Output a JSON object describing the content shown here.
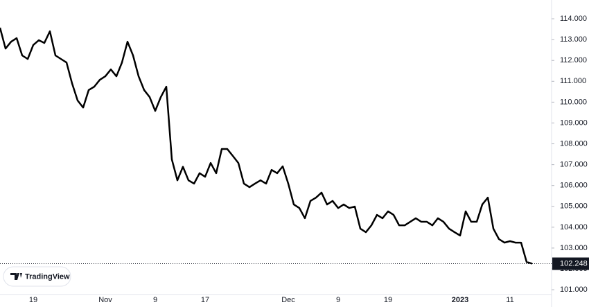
{
  "chart_data": {
    "type": "line",
    "color": "#000000",
    "grid": false,
    "watermark": "TradingView",
    "categories": [
      null,
      null,
      null,
      null,
      null,
      null,
      "19",
      null,
      null,
      null,
      null,
      null,
      null,
      null,
      null,
      null,
      null,
      null,
      null,
      "Nov",
      null,
      null,
      null,
      null,
      null,
      null,
      null,
      null,
      "9",
      null,
      null,
      null,
      null,
      null,
      null,
      null,
      null,
      "17",
      null,
      null,
      null,
      null,
      null,
      null,
      null,
      null,
      null,
      null,
      null,
      null,
      null,
      null,
      "Dec",
      null,
      null,
      null,
      null,
      null,
      null,
      null,
      null,
      "9",
      null,
      null,
      null,
      null,
      null,
      null,
      null,
      null,
      "19",
      null,
      null,
      null,
      null,
      null,
      null,
      null,
      null,
      null,
      null,
      null,
      null,
      "2023",
      null,
      null,
      null,
      null,
      null,
      null,
      null,
      null,
      "11",
      null,
      null,
      null,
      null
    ],
    "values": [
      113.57,
      112.57,
      112.9,
      113.07,
      112.24,
      112.07,
      112.74,
      112.97,
      112.84,
      113.4,
      112.24,
      112.07,
      111.9,
      110.9,
      110.08,
      109.74,
      110.58,
      110.74,
      111.07,
      111.24,
      111.57,
      111.24,
      111.9,
      112.9,
      112.24,
      111.24,
      110.58,
      110.24,
      109.58,
      110.24,
      110.74,
      107.25,
      106.25,
      106.9,
      106.25,
      106.09,
      106.59,
      106.42,
      107.08,
      106.59,
      107.75,
      107.75,
      107.42,
      107.08,
      106.09,
      105.92,
      106.09,
      106.25,
      106.09,
      106.75,
      106.59,
      106.92,
      106.09,
      105.09,
      104.92,
      104.43,
      105.26,
      105.42,
      105.66,
      105.09,
      105.26,
      104.92,
      105.09,
      104.92,
      104.99,
      103.93,
      103.76,
      104.09,
      104.59,
      104.43,
      104.76,
      104.59,
      104.09,
      104.09,
      104.26,
      104.43,
      104.26,
      104.26,
      104.09,
      104.43,
      104.26,
      103.93,
      103.76,
      103.6,
      104.76,
      104.26,
      104.26,
      105.09,
      105.42,
      103.93,
      103.43,
      103.26,
      103.33,
      103.26,
      103.26,
      102.33,
      102.25
    ],
    "last_value": 102.248,
    "ylim": [
      100.77,
      114.9
    ],
    "yticks": [
      {
        "value": 101,
        "label": "101.000"
      },
      {
        "value": 102,
        "label": "102.000"
      },
      {
        "value": 103,
        "label": "103.000"
      },
      {
        "value": 104,
        "label": "104.000"
      },
      {
        "value": 105,
        "label": "105.000"
      },
      {
        "value": 106,
        "label": "106.000"
      },
      {
        "value": 107,
        "label": "107.000"
      },
      {
        "value": 108,
        "label": "108.000"
      },
      {
        "value": 109,
        "label": "109.000"
      },
      {
        "value": 110,
        "label": "110.000"
      },
      {
        "value": 111,
        "label": "111.000"
      },
      {
        "value": 112,
        "label": "112.000"
      },
      {
        "value": 113,
        "label": "113.000"
      },
      {
        "value": 114,
        "label": "114.000"
      }
    ]
  }
}
